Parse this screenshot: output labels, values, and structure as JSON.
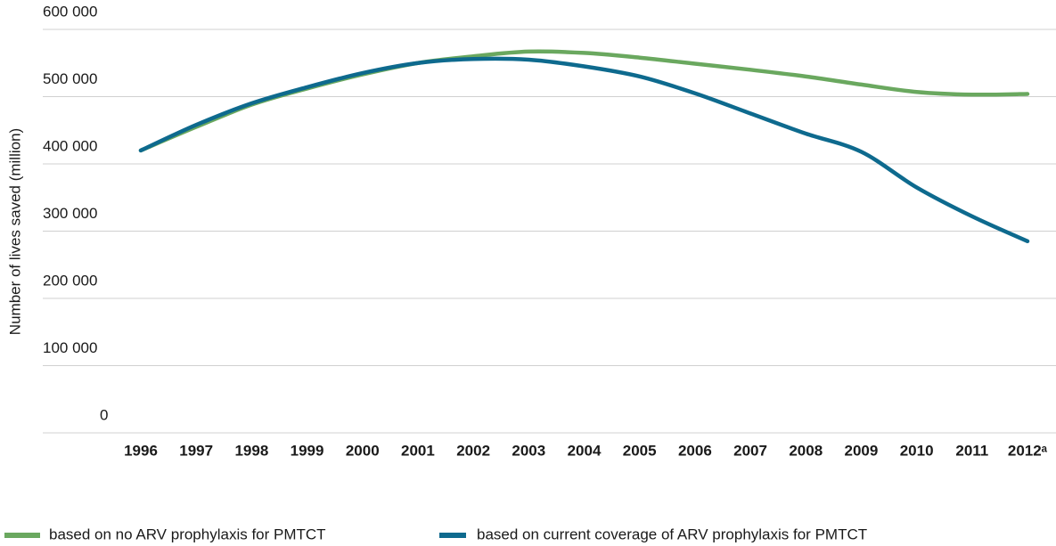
{
  "chart_data": {
    "type": "line",
    "y_label": "Number of lives saved (million)",
    "categories": [
      "1996",
      "1997",
      "1998",
      "1999",
      "2000",
      "2001",
      "2002",
      "2003",
      "2004",
      "2005",
      "2006",
      "2007",
      "2008",
      "2009",
      "2010",
      "2011",
      "2012ᵃ"
    ],
    "series": [
      {
        "name": "based on no ARV prophylaxis for PMTCT",
        "color": "#6aa85f",
        "values": [
          420000,
          455000,
          488000,
          512000,
          533000,
          550000,
          560000,
          567000,
          565000,
          558000,
          549000,
          540000,
          530000,
          518000,
          507000,
          503000,
          504000
        ]
      },
      {
        "name": "based on current coverage of ARV prophylaxis for PMTCT",
        "color": "#0e6a8e",
        "values": [
          420000,
          458000,
          490000,
          514000,
          535000,
          550000,
          556000,
          555000,
          545000,
          530000,
          505000,
          475000,
          445000,
          418000,
          365000,
          322000,
          285000
        ]
      }
    ],
    "ylim": [
      0,
      600000
    ],
    "yticks": [
      0,
      {
        "value": 100000,
        "label": "100 000"
      },
      {
        "value": 200000,
        "label": "200 000"
      },
      {
        "value": 300000,
        "label": "300 000"
      },
      {
        "value": 400000,
        "label": "400  000"
      },
      {
        "value": 500000,
        "label": "500 000"
      },
      {
        "value": 600000,
        "label": "600 000"
      }
    ],
    "grid": true
  }
}
